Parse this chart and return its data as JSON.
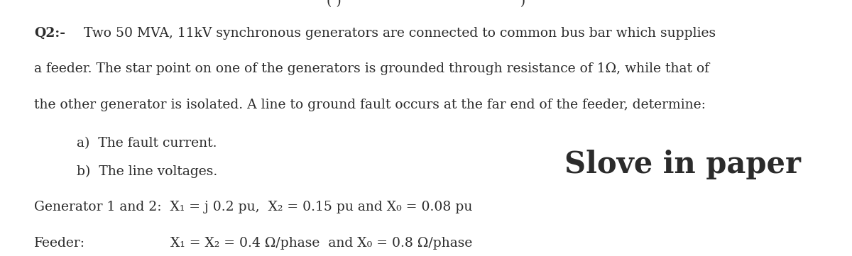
{
  "bg_color": "#ffffff",
  "text_color": "#2b2b2b",
  "figsize": [
    12.0,
    3.61
  ],
  "dpi": 100,
  "partial_top": "Q2:- Two 50 MVA, 11kV synchronous generators are connected to common bus bar which supplies",
  "line2": "a feeder. The star point on one of the generators is grounded through resistance of 1Ω, while that of",
  "line3": "the other generator is isolated. A line to ground fault occurs at the far end of the feeder, determine:",
  "item_a": "a)  The fault current.",
  "item_b": "b)  The line voltages.",
  "watermark": "Slove in paper",
  "gen_line": "Generator 1 and 2:  X₁ = j 0.2 pu,  X₂ = 0.15 pu and X₀ = 0.08 pu",
  "feeder_label": "Feeder:",
  "feeder_eq": "X₁ = X₂ = 0.4 Ω/phase  and X₀ = 0.8 Ω/phase",
  "body_fontsize": 13.5,
  "watermark_fontsize": 30,
  "q2_bold_part": "Q2:-",
  "q2_normal_part": " Two 50 MVA, 11kV synchronous generators are connected to common bus bar which supplies"
}
